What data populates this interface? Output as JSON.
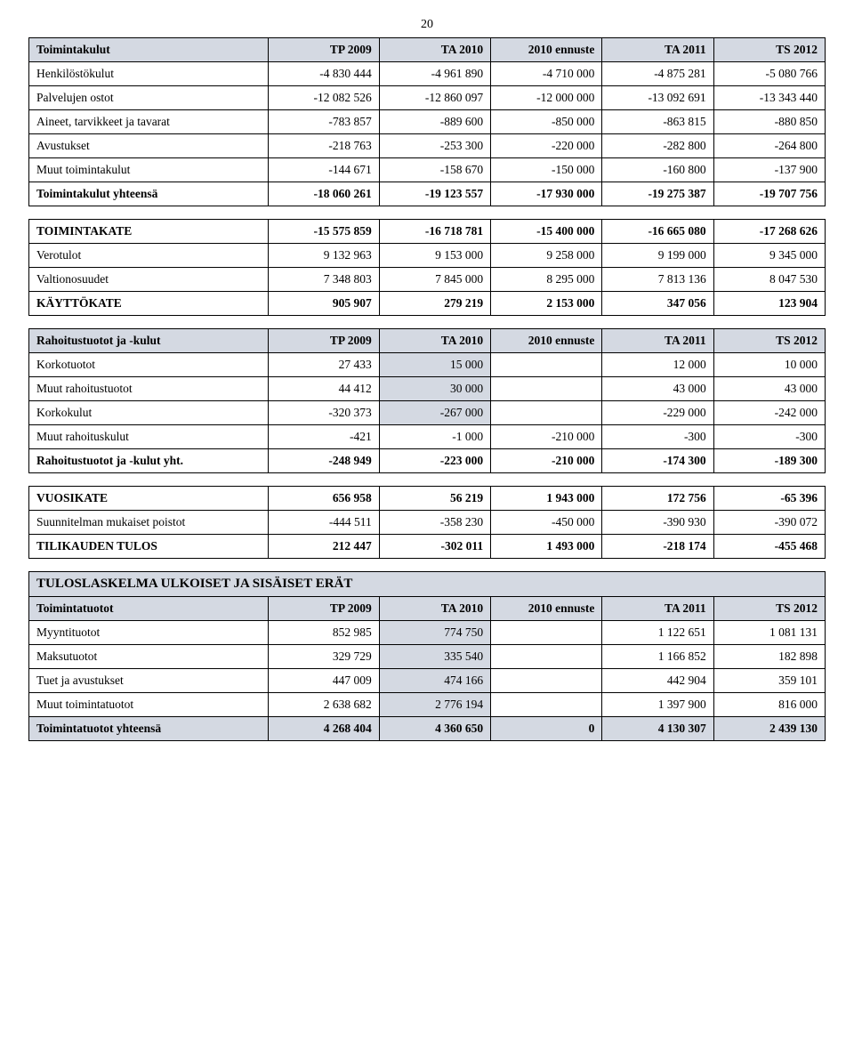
{
  "page_number": "20",
  "colors": {
    "shaded": "#d4d9e2",
    "border": "#000000",
    "text": "#000000",
    "bg": "#ffffff"
  },
  "col_headers": [
    "TP 2009",
    "TA 2010",
    "2010 ennuste",
    "TA 2011",
    "TS 2012"
  ],
  "t1": {
    "header_label": "Toimintakulut",
    "rows": [
      {
        "label": "Henkilöstökulut",
        "v": [
          "-4 830 444",
          "-4 961 890",
          "-4 710 000",
          "-4 875 281",
          "-5 080 766"
        ]
      },
      {
        "label": "Palvelujen ostot",
        "v": [
          "-12 082 526",
          "-12 860 097",
          "-12 000 000",
          "-13 092 691",
          "-13 343 440"
        ]
      },
      {
        "label": "Aineet, tarvikkeet ja tavarat",
        "v": [
          "-783 857",
          "-889 600",
          "-850 000",
          "-863 815",
          "-880 850"
        ]
      },
      {
        "label": "Avustukset",
        "v": [
          "-218 763",
          "-253 300",
          "-220 000",
          "-282 800",
          "-264 800"
        ]
      },
      {
        "label": "Muut toimintakulut",
        "v": [
          "-144 671",
          "-158 670",
          "-150 000",
          "-160 800",
          "-137 900"
        ]
      }
    ],
    "total": {
      "label": "Toimintakulut yhteensä",
      "v": [
        "-18 060 261",
        "-19 123 557",
        "-17 930 000",
        "-19 275 387",
        "-19 707 756"
      ]
    }
  },
  "t2": {
    "rows": [
      {
        "label": "TOIMINTAKATE",
        "bold": true,
        "v": [
          "-15 575 859",
          "-16 718 781",
          "-15 400 000",
          "-16 665 080",
          "-17 268 626"
        ]
      },
      {
        "label": "Verotulot",
        "v": [
          "9 132 963",
          "9 153 000",
          "9 258 000",
          "9 199 000",
          "9 345 000"
        ]
      },
      {
        "label": "Valtionosuudet",
        "v": [
          "7 348 803",
          "7 845 000",
          "8 295 000",
          "7 813 136",
          "8 047 530"
        ]
      },
      {
        "label": "KÄYTTÖKATE",
        "bold": true,
        "v": [
          "905 907",
          "279 219",
          "2 153 000",
          "347 056",
          "123 904"
        ]
      }
    ]
  },
  "t3": {
    "header_label": "Rahoitustuotot ja -kulut",
    "rows": [
      {
        "label": "Korkotuotot",
        "v": [
          "27 433",
          "15 000",
          "",
          "12 000",
          "10 000"
        ],
        "shade_c2": true
      },
      {
        "label": "Muut rahoitustuotot",
        "v": [
          "44 412",
          "30 000",
          "",
          "43 000",
          "43 000"
        ],
        "shade_c2": true
      },
      {
        "label": "Korkokulut",
        "v": [
          "-320 373",
          "-267 000",
          "",
          "-229 000",
          "-242 000"
        ],
        "shade_c2": true
      },
      {
        "label": "Muut rahoituskulut",
        "v": [
          "-421",
          "-1 000",
          "-210 000",
          "-300",
          "-300"
        ]
      }
    ],
    "total": {
      "label": "Rahoitustuotot ja -kulut yht.",
      "v": [
        "-248 949",
        "-223 000",
        "-210 000",
        "-174 300",
        "-189 300"
      ]
    }
  },
  "t4": {
    "rows": [
      {
        "label": "VUOSIKATE",
        "bold": true,
        "v": [
          "656 958",
          "56 219",
          "1 943 000",
          "172 756",
          "-65 396"
        ]
      },
      {
        "label": "Suunnitelman mukaiset poistot",
        "v": [
          "-444 511",
          "-358 230",
          "-450 000",
          "-390 930",
          "-390 072"
        ]
      },
      {
        "label": "TILIKAUDEN TULOS",
        "bold": true,
        "v": [
          "212 447",
          "-302 011",
          "1 493 000",
          "-218 174",
          "-455 468"
        ]
      }
    ]
  },
  "t5": {
    "section_title": "TULOSLASKELMA ULKOISET JA SISÄISET ERÄT",
    "header_label": "Toimintatuotot",
    "rows": [
      {
        "label": "Myyntituotot",
        "v": [
          "852 985",
          "774 750",
          "",
          "1 122 651",
          "1 081 131"
        ],
        "shade_c2": true
      },
      {
        "label": "Maksutuotot",
        "v": [
          "329 729",
          "335 540",
          "",
          "1 166 852",
          "182 898"
        ],
        "shade_c2": true
      },
      {
        "label": "Tuet ja avustukset",
        "v": [
          "447 009",
          "474 166",
          "",
          "442 904",
          "359 101"
        ],
        "shade_c2": true
      },
      {
        "label": "Muut toimintatuotot",
        "v": [
          "2 638 682",
          "2 776 194",
          "",
          "1 397 900",
          "816 000"
        ],
        "shade_c2": true
      }
    ],
    "total": {
      "label": "Toimintatuotot yhteensä",
      "v": [
        "4 268 404",
        "4 360 650",
        "0",
        "4 130 307",
        "2 439 130"
      ]
    }
  }
}
